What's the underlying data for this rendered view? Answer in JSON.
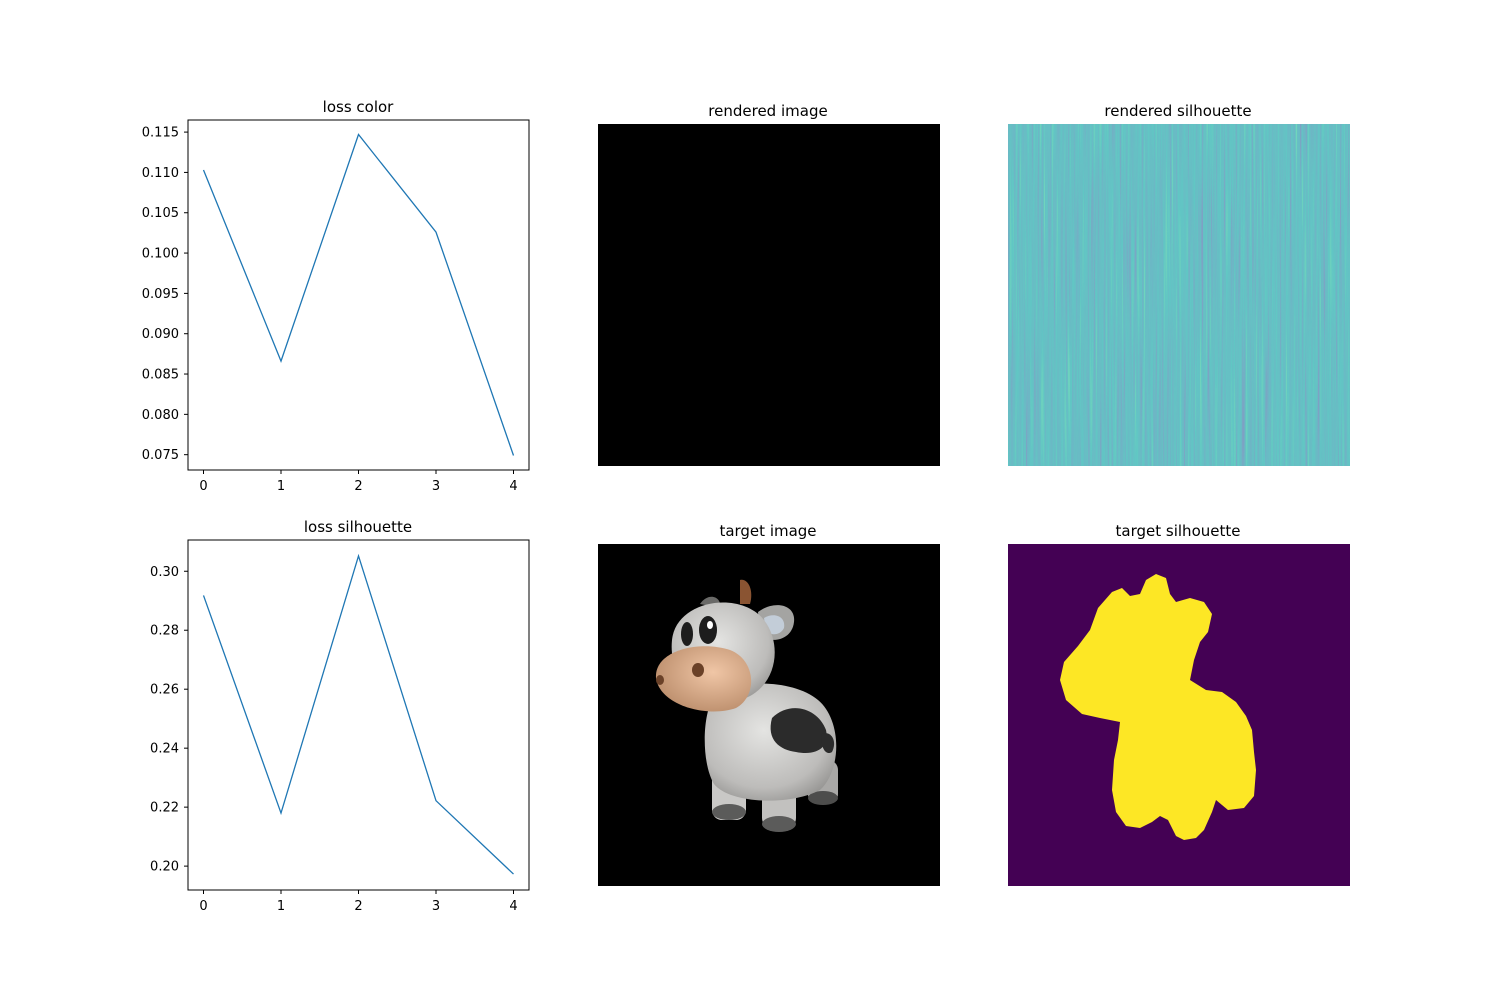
{
  "colors": {
    "line": "#1f77b4",
    "silhouette_background": "#440154",
    "silhouette_foreground": "#fde725",
    "image_background": "#000000"
  },
  "panels": {
    "rendered_image": {
      "title": "rendered image",
      "content": "solid black image"
    },
    "rendered_silhouette": {
      "title": "rendered silhouette",
      "colormap": "viridis",
      "content": "noisy blue-green stripe pattern"
    },
    "target_image": {
      "title": "target image",
      "content": "rendered cow toy on black background"
    },
    "target_silhouette": {
      "title": "target silhouette",
      "colormap": "viridis",
      "content": "yellow cow silhouette on purple background"
    }
  },
  "chart_data": [
    {
      "type": "line",
      "title": "loss color",
      "xlabel": "",
      "ylabel": "",
      "x": [
        0,
        1,
        2,
        3,
        4
      ],
      "series": [
        {
          "values": [
            0.1103,
            0.0866,
            0.1147,
            0.1026,
            0.0749
          ]
        }
      ],
      "xticks": [
        "0",
        "1",
        "2",
        "3",
        "4"
      ],
      "yticks": [
        "0.075",
        "0.080",
        "0.085",
        "0.090",
        "0.095",
        "0.100",
        "0.105",
        "0.110",
        "0.115"
      ],
      "xlim": [
        -0.2,
        4.2
      ],
      "ylim": [
        0.0731,
        0.1165
      ],
      "grid": false,
      "legend": "none"
    },
    {
      "type": "line",
      "title": "loss silhouette",
      "xlabel": "",
      "ylabel": "",
      "x": [
        0,
        1,
        2,
        3,
        4
      ],
      "series": [
        {
          "values": [
            0.2918,
            0.218,
            0.3052,
            0.2222,
            0.1973
          ]
        }
      ],
      "xticks": [
        "0",
        "1",
        "2",
        "3",
        "4"
      ],
      "yticks": [
        "0.20",
        "0.22",
        "0.24",
        "0.26",
        "0.28",
        "0.30"
      ],
      "xlim": [
        -0.2,
        4.2
      ],
      "ylim": [
        0.1919,
        0.3106
      ],
      "grid": false,
      "legend": "none"
    }
  ]
}
